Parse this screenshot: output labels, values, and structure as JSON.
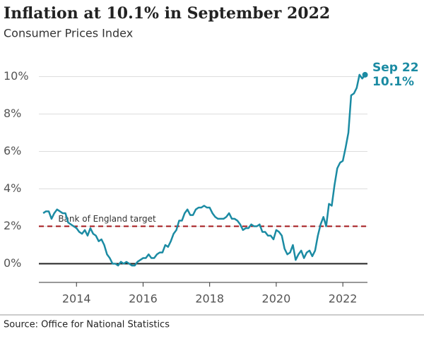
{
  "chart_data": {
    "type": "line",
    "title": "Inflation at 10.1% in September 2022",
    "subtitle": "Consumer Prices Index",
    "source": "Source: Office for National Statistics",
    "x": [
      2013,
      2013.083,
      2013.167,
      2013.25,
      2013.333,
      2013.417,
      2013.5,
      2013.583,
      2013.667,
      2013.75,
      2013.833,
      2013.917,
      2014,
      2014.083,
      2014.167,
      2014.25,
      2014.333,
      2014.417,
      2014.5,
      2014.583,
      2014.667,
      2014.75,
      2014.833,
      2014.917,
      2015,
      2015.083,
      2015.167,
      2015.25,
      2015.333,
      2015.417,
      2015.5,
      2015.583,
      2015.667,
      2015.75,
      2015.833,
      2015.917,
      2016,
      2016.083,
      2016.167,
      2016.25,
      2016.333,
      2016.417,
      2016.5,
      2016.583,
      2016.667,
      2016.75,
      2016.833,
      2016.917,
      2017,
      2017.083,
      2017.167,
      2017.25,
      2017.333,
      2017.417,
      2017.5,
      2017.583,
      2017.667,
      2017.75,
      2017.833,
      2017.917,
      2018,
      2018.083,
      2018.167,
      2018.25,
      2018.333,
      2018.417,
      2018.5,
      2018.583,
      2018.667,
      2018.75,
      2018.833,
      2018.917,
      2019,
      2019.083,
      2019.167,
      2019.25,
      2019.333,
      2019.417,
      2019.5,
      2019.583,
      2019.667,
      2019.75,
      2019.833,
      2019.917,
      2020,
      2020.083,
      2020.167,
      2020.25,
      2020.333,
      2020.417,
      2020.5,
      2020.583,
      2020.667,
      2020.75,
      2020.833,
      2020.917,
      2021,
      2021.083,
      2021.167,
      2021.25,
      2021.333,
      2021.417,
      2021.5,
      2021.583,
      2021.667,
      2021.75,
      2021.833,
      2021.917,
      2022,
      2022.083,
      2022.167,
      2022.25,
      2022.333,
      2022.417,
      2022.5,
      2022.583,
      2022.667
    ],
    "series": [
      {
        "name": "Consumer Prices Index",
        "color": "#1b8ba3",
        "values": [
          2.7,
          2.8,
          2.8,
          2.4,
          2.7,
          2.9,
          2.8,
          2.7,
          2.7,
          2.2,
          2.1,
          2.0,
          1.9,
          1.7,
          1.6,
          1.8,
          1.5,
          1.9,
          1.6,
          1.5,
          1.2,
          1.3,
          1.0,
          0.5,
          0.3,
          0.0,
          0.0,
          -0.1,
          0.1,
          0.0,
          0.1,
          0.0,
          -0.1,
          -0.1,
          0.1,
          0.2,
          0.3,
          0.3,
          0.5,
          0.3,
          0.3,
          0.5,
          0.6,
          0.6,
          1.0,
          0.9,
          1.2,
          1.6,
          1.8,
          2.3,
          2.3,
          2.7,
          2.9,
          2.6,
          2.6,
          2.9,
          3.0,
          3.0,
          3.1,
          3.0,
          3.0,
          2.7,
          2.5,
          2.4,
          2.4,
          2.4,
          2.5,
          2.7,
          2.4,
          2.4,
          2.3,
          2.1,
          1.8,
          1.9,
          1.9,
          2.1,
          2.0,
          2.0,
          2.1,
          1.7,
          1.7,
          1.5,
          1.5,
          1.3,
          1.8,
          1.7,
          1.5,
          0.8,
          0.5,
          0.6,
          1.0,
          0.2,
          0.5,
          0.7,
          0.3,
          0.6,
          0.7,
          0.4,
          0.7,
          1.5,
          2.1,
          2.5,
          2.0,
          3.2,
          3.1,
          4.2,
          5.1,
          5.4,
          5.5,
          6.2,
          7.0,
          9.0,
          9.1,
          9.4,
          10.1,
          9.9,
          10.1
        ]
      }
    ],
    "target": {
      "label": "Bank of England target",
      "value": 2,
      "color": "#a3171b"
    },
    "end_label": {
      "date": "Sep 22",
      "value_label": "10.1%"
    },
    "xlim": [
      2012.87,
      2022.74
    ],
    "xticks": [
      2014,
      2016,
      2018,
      2020,
      2022
    ],
    "ylim": [
      -1,
      10.7
    ],
    "yticks": [
      {
        "value": 0,
        "label": "0%"
      },
      {
        "value": 2,
        "label": "2%"
      },
      {
        "value": 4,
        "label": "4%"
      },
      {
        "value": 6,
        "label": "6%"
      },
      {
        "value": 8,
        "label": "8%"
      },
      {
        "value": 10,
        "label": "10%"
      }
    ],
    "grid": true
  }
}
